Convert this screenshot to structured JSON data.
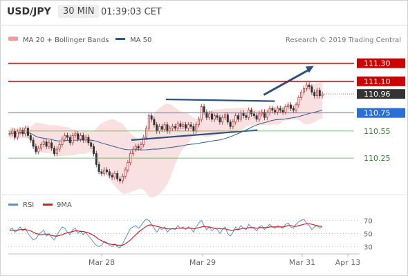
{
  "header": {
    "symbol": "USD/JPY",
    "timeframe": "30 MIN",
    "time": "01:39:03 CET"
  },
  "legend": {
    "ma20": "MA 20 + Bollinger Bands",
    "ma50": "MA 50",
    "credit": "Research © 2019 Trading Central",
    "rsi": "RSI",
    "ma9": "9MA"
  },
  "colors": {
    "resistance": "#cc0000",
    "support_line": "#4f86c6",
    "pivot_label": "#2a6fd6",
    "green_line": "#4caf50",
    "green_text": "#2e7d32",
    "bollinger": "#f6c9c9",
    "ma50": "#2d5a8c",
    "trendline": "#2f4f7f",
    "rsi_line": "#5b8fd6",
    "ma9_line": "#cc2222",
    "up_candle": "#cc2222",
    "down_candle": "#333333"
  },
  "chart_data": [
    {
      "type": "candlestick",
      "title": "USD/JPY",
      "x_labels": [
        "Mar 28",
        "Mar 29",
        "Mar 31",
        "Apr 13"
      ],
      "ylim": [
        109.9,
        111.45
      ],
      "levels": [
        {
          "value": 111.3,
          "label": "111.30",
          "kind": "resistance"
        },
        {
          "value": 111.1,
          "label": "111.10",
          "kind": "resistance"
        },
        {
          "value": 110.96,
          "label": "110.96",
          "kind": "last"
        },
        {
          "value": 110.75,
          "label": "110.75",
          "kind": "pivot"
        },
        {
          "value": 110.55,
          "label": "110.55",
          "kind": "support"
        },
        {
          "value": 110.25,
          "label": "110.25",
          "kind": "support"
        }
      ],
      "close_series": [
        110.52,
        110.55,
        110.48,
        110.54,
        110.56,
        110.52,
        110.58,
        110.5,
        110.45,
        110.38,
        110.32,
        110.36,
        110.4,
        110.43,
        110.38,
        110.42,
        110.36,
        110.3,
        110.35,
        110.4,
        110.46,
        110.5,
        110.48,
        110.42,
        110.5,
        110.52,
        110.46,
        110.5,
        110.45,
        110.48,
        110.42,
        110.38,
        110.3,
        110.18,
        110.1,
        110.08,
        110.12,
        110.1,
        110.06,
        110.04,
        110.08,
        110.02,
        110.0,
        110.05,
        110.12,
        110.2,
        110.3,
        110.35,
        110.38,
        110.36,
        110.4,
        110.48,
        110.58,
        110.72,
        110.68,
        110.62,
        110.55,
        110.6,
        110.57,
        110.62,
        110.55,
        110.58,
        110.6,
        110.58,
        110.63,
        110.6,
        110.62,
        110.58,
        110.62,
        110.6,
        110.55,
        110.62,
        110.68,
        110.82,
        110.76,
        110.7,
        110.74,
        110.68,
        110.72,
        110.7,
        110.65,
        110.7,
        110.73,
        110.65,
        110.6,
        110.65,
        110.72,
        110.68,
        110.75,
        110.72,
        110.7,
        110.78,
        110.74,
        110.72,
        110.68,
        110.74,
        110.76,
        110.7,
        110.75,
        110.8,
        110.78,
        110.76,
        110.8,
        110.78,
        110.76,
        110.82,
        110.84,
        110.8,
        110.78,
        110.84,
        110.92,
        110.98,
        111.02,
        111.06,
        111.04,
        110.98,
        110.94,
        111.0,
        110.94,
        110.96
      ],
      "trendlines": [
        {
          "name": "upper-trendline",
          "points": [
            [
              0.5,
              110.9
            ],
            [
              0.845,
              110.88
            ]
          ]
        },
        {
          "name": "lower-trendline",
          "points": [
            [
              0.39,
              110.45
            ],
            [
              0.79,
              110.56
            ]
          ]
        }
      ],
      "arrow": {
        "from": [
          0.81,
          110.95
        ],
        "to": [
          0.87,
          111.27
        ]
      }
    },
    {
      "type": "line",
      "title": "RSI",
      "ylim": [
        25,
        80
      ],
      "yticks": [
        30,
        50,
        70
      ],
      "series": [
        {
          "name": "RSI",
          "values": [
            56,
            58,
            52,
            55,
            60,
            54,
            58,
            50,
            45,
            40,
            42,
            48,
            52,
            55,
            46,
            50,
            44,
            40,
            48,
            54,
            60,
            58,
            52,
            48,
            56,
            58,
            50,
            54,
            48,
            52,
            46,
            42,
            36,
            32,
            30,
            32,
            38,
            36,
            32,
            30,
            34,
            30,
            28,
            34,
            42,
            50,
            58,
            60,
            62,
            58,
            62,
            68,
            72,
            70,
            64,
            58,
            52,
            58,
            56,
            60,
            52,
            56,
            58,
            56,
            62,
            58,
            60,
            56,
            60,
            58,
            52,
            60,
            66,
            70,
            62,
            56,
            60,
            54,
            58,
            56,
            50,
            56,
            60,
            50,
            46,
            52,
            60,
            56,
            62,
            58,
            56,
            64,
            60,
            58,
            54,
            60,
            62,
            56,
            60,
            64,
            60,
            58,
            62,
            60,
            58,
            64,
            66,
            60,
            58,
            64,
            68,
            70,
            72,
            66,
            62,
            56,
            60,
            62,
            58,
            60
          ]
        },
        {
          "name": "9MA",
          "values": [
            55,
            55,
            55,
            55,
            56,
            56,
            56,
            55,
            54,
            52,
            50,
            49,
            48,
            49,
            49,
            48,
            47,
            46,
            46,
            47,
            48,
            50,
            51,
            52,
            53,
            54,
            54,
            53,
            53,
            52,
            51,
            49,
            47,
            44,
            41,
            39,
            37,
            35,
            34,
            33,
            33,
            32,
            32,
            32,
            34,
            37,
            40,
            44,
            48,
            52,
            55,
            58,
            61,
            63,
            63,
            62,
            61,
            60,
            59,
            58,
            57,
            57,
            57,
            57,
            58,
            58,
            58,
            58,
            58,
            58,
            57,
            58,
            59,
            60,
            61,
            60,
            60,
            59,
            58,
            58,
            57,
            57,
            57,
            56,
            55,
            55,
            56,
            56,
            57,
            58,
            58,
            59,
            59,
            59,
            58,
            59,
            59,
            59,
            59,
            60,
            60,
            60,
            60,
            60,
            60,
            61,
            62,
            62,
            61,
            61,
            62,
            63,
            64,
            65,
            65,
            64,
            63,
            62,
            61,
            61
          ]
        }
      ]
    }
  ]
}
